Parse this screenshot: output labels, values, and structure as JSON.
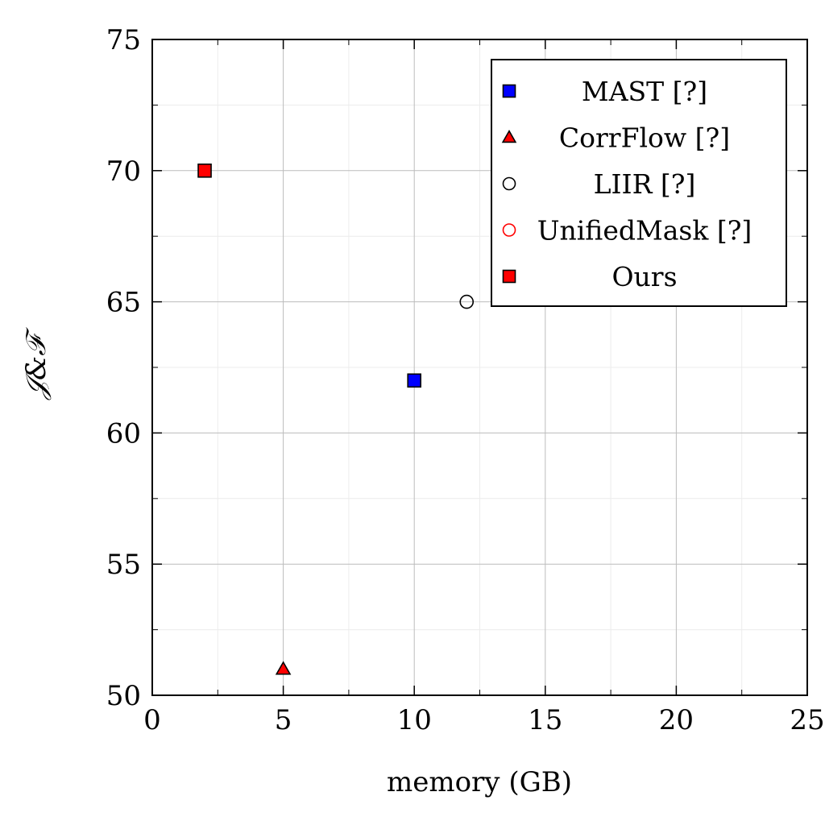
{
  "chart_data": {
    "type": "scatter",
    "title": "",
    "xlabel": "memory (GB)",
    "ylabel": "𝒥&ℱ",
    "xlim": [
      0,
      25
    ],
    "ylim": [
      50,
      75
    ],
    "x_ticks": [
      "0",
      "5",
      "10",
      "15",
      "20",
      "25"
    ],
    "y_ticks": [
      "50",
      "55",
      "60",
      "65",
      "70",
      "75"
    ],
    "grid": true,
    "legend_position": "top-right",
    "series": [
      {
        "name": "MAST [?]",
        "marker": "square",
        "fill": "#0000ff",
        "stroke": "#000000",
        "points": [
          {
            "x": 10,
            "y": 62
          }
        ]
      },
      {
        "name": "CorrFlow [?]",
        "marker": "triangle",
        "fill": "#ff0000",
        "stroke": "#000000",
        "points": [
          {
            "x": 5,
            "y": 51
          }
        ]
      },
      {
        "name": "LIIR [?]",
        "marker": "circle",
        "fill": "none",
        "stroke": "#000000",
        "points": [
          {
            "x": 12,
            "y": 65
          }
        ]
      },
      {
        "name": "UnifiedMask [?]",
        "marker": "circle",
        "fill": "none",
        "stroke": "#ff0000",
        "points": []
      },
      {
        "name": "Ours",
        "marker": "square",
        "fill": "#ff0000",
        "stroke": "#000000",
        "points": [
          {
            "x": 2,
            "y": 70
          }
        ]
      }
    ]
  }
}
